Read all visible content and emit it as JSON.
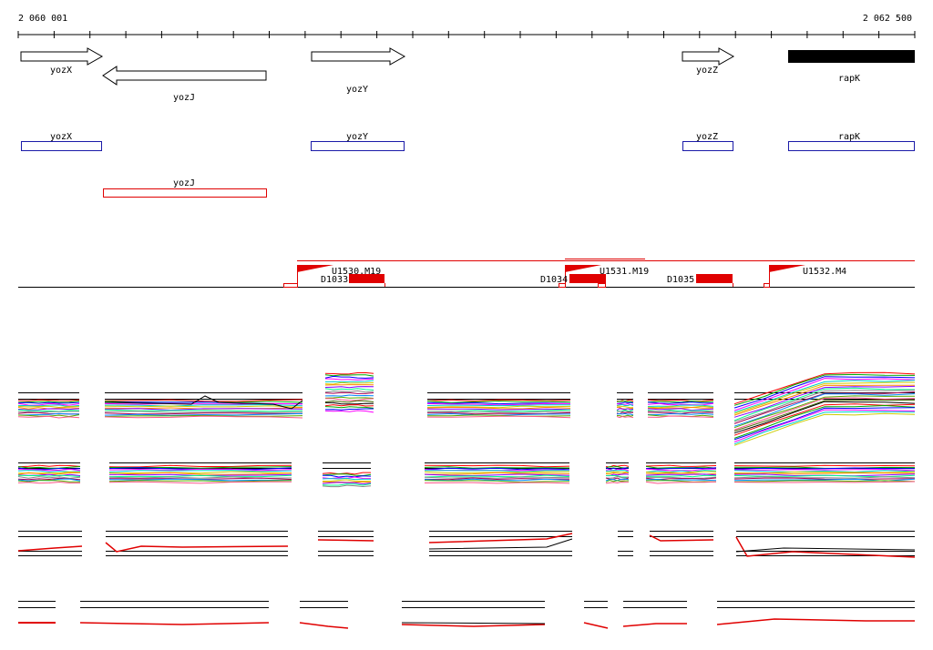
{
  "ruler": {
    "start_label": "2 060 001",
    "end_label": "2 062 500"
  },
  "colors": {
    "gene_arrow": "#000000",
    "cds_box": "#1a1aa8",
    "cds_box_reverse": "#e00000",
    "region": "#e00000",
    "track_line": "#000000",
    "profile_main": "#e00000"
  },
  "gene_arrows": [
    {
      "label": "yozX",
      "strand": "+",
      "filled": false
    },
    {
      "label": "yozJ",
      "strand": "-",
      "filled": false
    },
    {
      "label": "yozY",
      "strand": "+",
      "filled": false
    },
    {
      "label": "yozZ",
      "strand": "+",
      "filled": false
    },
    {
      "label": "rapK",
      "strand": "+",
      "filled": true
    }
  ],
  "cds_boxes_forward": [
    {
      "label": "yozX"
    },
    {
      "label": "yozY"
    },
    {
      "label": "yozZ"
    },
    {
      "label": "rapK"
    }
  ],
  "cds_boxes_reverse": [
    {
      "label": "yozJ"
    }
  ],
  "regulatory_features": [
    {
      "up_label": "U1530.M19",
      "down_label": "D1033"
    },
    {
      "up_label": "U1531.M19",
      "down_label": "D1034"
    },
    {
      "up_label": "U1532.M4",
      "down_label": "D1035"
    }
  ],
  "expression_tracks": [
    {
      "name": "track-1"
    },
    {
      "name": "track-2"
    },
    {
      "name": "track-3"
    },
    {
      "name": "track-4"
    }
  ]
}
